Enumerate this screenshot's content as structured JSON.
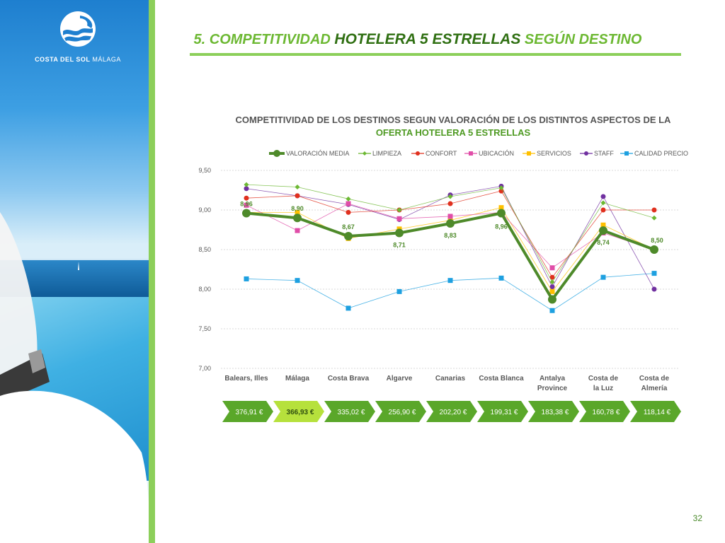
{
  "header": {
    "title_part1": "5. COMPETITIVIDAD ",
    "title_part2": "HOTELERA 5 ESTRELLAS",
    "title_part3": " SEGÚN DESTINO"
  },
  "logo": {
    "text_bold": "COSTA DEL SOL",
    "text_light": " MÁLAGA"
  },
  "page_number": "32",
  "chart_data": {
    "type": "line",
    "title": "COMPETITIVIDAD DE LOS DESTINOS SEGUN VALORACIÓN DE LOS DISTINTOS ASPECTOS  DE LA",
    "title_line2": "OFERTA HOTELERA 5 ESTRELLAS",
    "ylim": [
      7.0,
      9.5
    ],
    "yticks": [
      "7,00",
      "7,50",
      "8,00",
      "8,50",
      "9,00",
      "9,50"
    ],
    "categories": [
      "Balears, Illes",
      "Málaga",
      "Costa Brava",
      "Algarve",
      "Canarias",
      "Costa Blanca",
      "Antalya Province",
      "Costa de la Luz",
      "Costa de Almería"
    ],
    "legend": {
      "position": "top"
    },
    "series": [
      {
        "name": "VALORACIÓN MEDIA",
        "color": "#4e8a2a",
        "marker": "circle",
        "values": [
          8.96,
          8.9,
          8.67,
          8.71,
          8.83,
          8.96,
          7.87,
          8.74,
          8.5
        ],
        "labels": [
          "8,96",
          "8,90",
          "8,67",
          "8,71",
          "8,83",
          "8,96",
          "",
          "8,74",
          "8,50"
        ]
      },
      {
        "name": "LIMPIEZA",
        "color": "#6cb832",
        "marker": "diamond",
        "values": [
          9.32,
          9.29,
          9.14,
          9.0,
          9.17,
          9.28,
          8.09,
          9.09,
          8.9
        ]
      },
      {
        "name": "CONFORT",
        "color": "#e0301e",
        "marker": "circle",
        "values": [
          9.15,
          9.18,
          8.97,
          9.0,
          9.08,
          9.24,
          8.15,
          9.0,
          9.0
        ]
      },
      {
        "name": "UBICACIÓN",
        "color": "#e04da8",
        "marker": "square",
        "values": [
          9.06,
          8.74,
          9.08,
          8.89,
          8.92,
          8.97,
          8.27,
          8.71,
          8.5
        ]
      },
      {
        "name": "SERVICIOS",
        "color": "#ffc000",
        "marker": "square",
        "values": [
          8.97,
          8.97,
          8.64,
          8.76,
          8.87,
          9.03,
          7.97,
          8.81,
          8.5
        ]
      },
      {
        "name": "STAFF",
        "color": "#7030a0",
        "marker": "circle",
        "values": [
          9.27,
          9.18,
          9.07,
          8.88,
          9.19,
          9.3,
          8.03,
          9.17,
          8.0
        ]
      },
      {
        "name": "CALIDAD PRECIO",
        "color": "#1ea0e0",
        "marker": "square",
        "values": [
          8.13,
          8.11,
          7.76,
          7.97,
          8.11,
          8.14,
          7.73,
          8.15,
          8.2
        ]
      }
    ],
    "prices": [
      "376,91 €",
      "366,93 €",
      "335,02 €",
      "256,90 €",
      "202,20 €",
      "199,31 €",
      "183,38 €",
      "160,78 €",
      "118,14 €"
    ],
    "highlight_price_index": 1
  }
}
